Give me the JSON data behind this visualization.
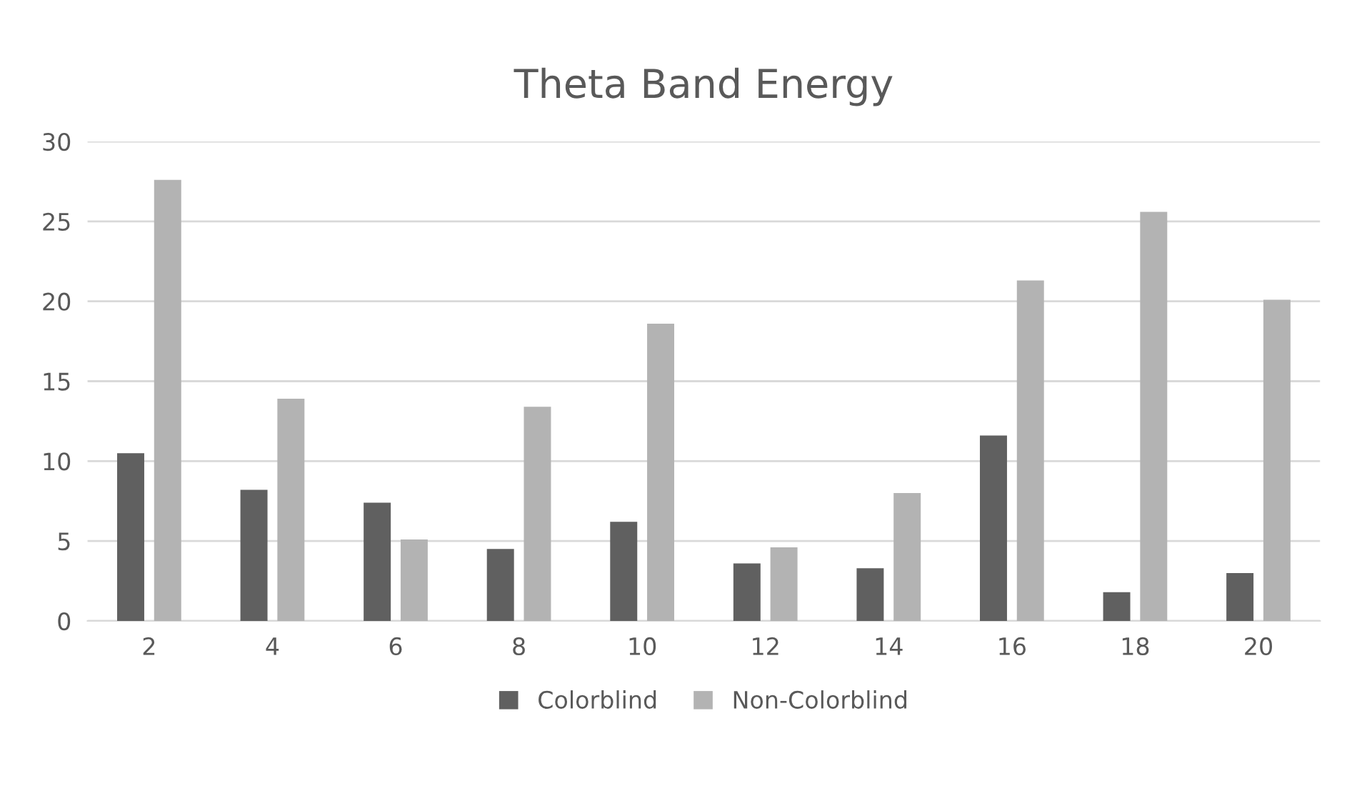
{
  "chart_data": {
    "type": "bar",
    "title": "Theta Band Energy",
    "categories": [
      "2",
      "4",
      "6",
      "8",
      "10",
      "12",
      "14",
      "16",
      "18",
      "20"
    ],
    "series": [
      {
        "name": "Colorblind",
        "color": "#606060",
        "values": [
          10.5,
          8.2,
          7.4,
          4.5,
          6.2,
          3.6,
          3.3,
          11.6,
          1.8,
          3.0
        ]
      },
      {
        "name": "Non-Colorblind",
        "color": "#b3b3b3",
        "values": [
          27.6,
          13.9,
          5.1,
          13.4,
          18.6,
          4.6,
          8.0,
          21.3,
          25.6,
          20.1
        ]
      }
    ],
    "ylim": [
      0,
      30
    ],
    "yticks": [
      0,
      5,
      10,
      15,
      20,
      25,
      30
    ],
    "grid": "y",
    "legend": "bottom"
  }
}
